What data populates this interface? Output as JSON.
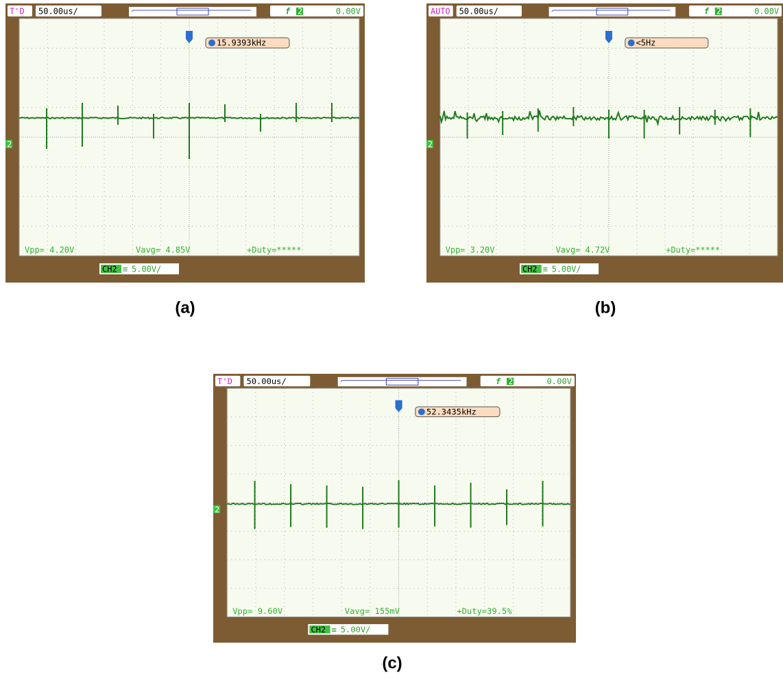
{
  "panels": [
    {
      "label": "(a)",
      "mode": "T'D",
      "timebase": "50.00us/",
      "trigger_channel": "2",
      "trigger_level": "0.00V",
      "frequency": "15.9393kHz",
      "vpp": "Vpp= 4.20V",
      "vavg": "Vavg= 4.85V",
      "duty": "+Duty=*****",
      "channel": "CH2",
      "scale": "5.00V/"
    },
    {
      "label": "(b)",
      "mode": "AUTO",
      "timebase": "50.00us/",
      "trigger_channel": "2",
      "trigger_level": "0.00V",
      "frequency": "<5Hz",
      "vpp": "Vpp= 3.20V",
      "vavg": "Vavg= 4.72V",
      "duty": "+Duty=*****",
      "channel": "CH2",
      "scale": "5.00V/"
    },
    {
      "label": "(c)",
      "mode": "T'D",
      "timebase": "50.00us/",
      "trigger_channel": "2",
      "trigger_level": "0.00V",
      "frequency": "52.3435kHz",
      "vpp": "Vpp= 9.60V",
      "vavg": "Vavg= 155mV",
      "duty": "+Duty=39.5%",
      "channel": "CH2",
      "scale": "5.00V/"
    }
  ]
}
